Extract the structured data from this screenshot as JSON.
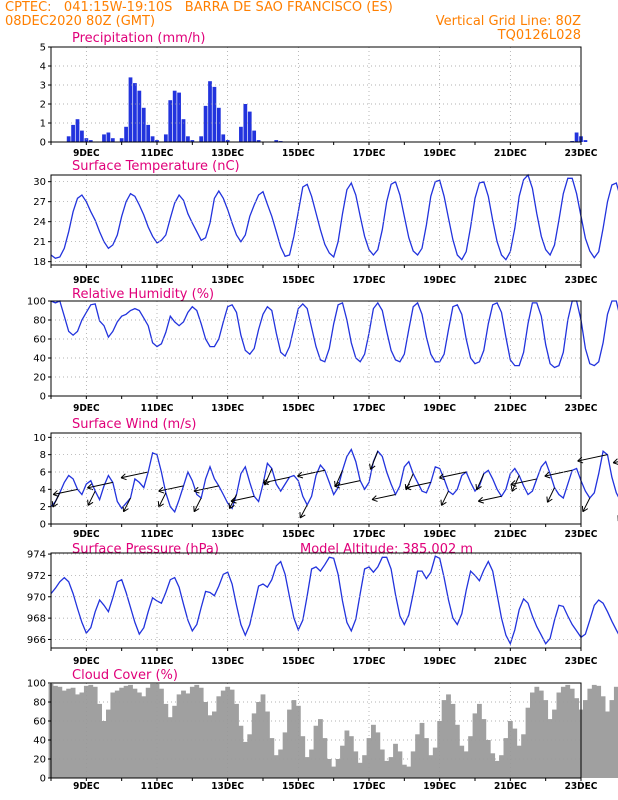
{
  "header": {
    "line1_left": "CPTEC:   041:15W-19:10S   BARRA DE SAO FRANCISCO (ES)",
    "line2_left": "08DEC2020 80Z (GMT)",
    "line2_right": "Vertical Grid Line: 80Z",
    "line3_right": "TQ0126L028"
  },
  "colors": {
    "header": "#ff7f00",
    "title": "#e0007a",
    "line": "#2233dd",
    "cloud": "#a0a0a0",
    "grid": "#999999"
  },
  "x_axis": {
    "start": 8.0,
    "end": 23.0,
    "ticks": [
      9,
      11,
      13,
      15,
      17,
      19,
      21,
      23
    ],
    "tick_labels": [
      "9DEC",
      "11DEC",
      "13DEC",
      "15DEC",
      "17DEC",
      "19DEC",
      "21DEC",
      "23DEC"
    ]
  },
  "chart_data": [
    {
      "type": "bar",
      "title": "Precipitation (mm/h)",
      "ylim": [
        0,
        5
      ],
      "yticks": [
        0,
        1,
        2,
        3,
        4,
        5
      ],
      "x_start": 8.0,
      "x_step": 0.125,
      "values": [
        0,
        0,
        0,
        0,
        0.3,
        0.9,
        1.2,
        0.6,
        0.2,
        0.1,
        0,
        0,
        0.4,
        0.5,
        0.2,
        0,
        0.2,
        0.8,
        3.4,
        3.1,
        2.7,
        1.8,
        0.9,
        0.3,
        0.1,
        0,
        0.4,
        2.2,
        2.7,
        2.6,
        1.2,
        0.3,
        0.1,
        0,
        0.3,
        1.9,
        3.2,
        2.9,
        1.8,
        0.4,
        0.1,
        0,
        0,
        0.8,
        2.0,
        1.6,
        0.6,
        0.1,
        0,
        0,
        0,
        0.1,
        0.05,
        0,
        0,
        0,
        0,
        0,
        0,
        0,
        0,
        0,
        0,
        0,
        0,
        0,
        0,
        0,
        0,
        0,
        0,
        0,
        0,
        0,
        0,
        0,
        0,
        0,
        0,
        0,
        0,
        0,
        0,
        0,
        0,
        0,
        0,
        0,
        0,
        0,
        0,
        0,
        0,
        0,
        0,
        0,
        0,
        0,
        0,
        0,
        0,
        0,
        0,
        0,
        0,
        0,
        0,
        0,
        0,
        0,
        0,
        0,
        0,
        0,
        0,
        0,
        0,
        0,
        0.05,
        0.5,
        0.3,
        0.1,
        0,
        0,
        0,
        0,
        0,
        0
      ]
    },
    {
      "type": "line",
      "title": "Surface Temperature (nC)",
      "ylim": [
        17.5,
        31
      ],
      "yticks": [
        18,
        21,
        24,
        27,
        30
      ],
      "x_start": 8.0,
      "x_step": 0.125,
      "values": [
        19.0,
        18.5,
        18.7,
        20.0,
        22.5,
        25.5,
        27.5,
        28.0,
        27.0,
        25.5,
        24.2,
        22.5,
        21.0,
        20.0,
        20.5,
        22.0,
        24.8,
        27.0,
        28.2,
        27.8,
        26.5,
        25.0,
        23.2,
        21.8,
        20.8,
        21.2,
        22.0,
        24.5,
        26.8,
        28.0,
        27.2,
        25.2,
        23.8,
        22.5,
        21.2,
        21.6,
        23.8,
        27.5,
        28.6,
        27.5,
        25.8,
        23.8,
        22.0,
        21.0,
        22.0,
        24.8,
        26.5,
        28.0,
        28.5,
        26.6,
        24.8,
        22.5,
        20.2,
        18.8,
        19.0,
        21.8,
        25.5,
        29.2,
        29.6,
        27.8,
        25.3,
        22.8,
        20.6,
        19.3,
        18.7,
        21.0,
        25.2,
        28.8,
        29.8,
        28.0,
        24.8,
        21.8,
        19.8,
        19.0,
        19.8,
        22.8,
        27.0,
        29.6,
        30.0,
        28.0,
        24.8,
        21.6,
        19.6,
        19.0,
        20.0,
        23.5,
        27.8,
        30.0,
        30.2,
        27.8,
        24.5,
        21.3,
        19.0,
        18.3,
        19.5,
        23.2,
        27.5,
        29.8,
        30.0,
        27.8,
        24.2,
        21.0,
        19.0,
        18.3,
        19.5,
        23.0,
        27.8,
        30.3,
        31.0,
        29.0,
        25.2,
        21.8,
        19.8,
        19.0,
        20.5,
        24.2,
        28.2,
        30.5,
        30.5,
        28.2,
        24.8,
        21.5,
        19.6,
        18.6,
        19.5,
        23.0,
        27.0,
        29.5,
        29.8,
        27.5,
        24.0,
        21.2,
        19.5,
        19.0,
        20.0,
        23.0,
        27.0,
        29.8,
        30.0,
        26.5
      ]
    },
    {
      "type": "line",
      "title": "Relative Humidity (%)",
      "ylim": [
        0,
        100
      ],
      "yticks": [
        0,
        20,
        40,
        60,
        80,
        100
      ],
      "x_start": 8.0,
      "x_step": 0.125,
      "values": [
        100,
        98,
        100,
        84,
        68,
        64,
        68,
        80,
        88,
        96,
        97,
        79,
        74,
        62,
        68,
        78,
        84,
        86,
        90,
        92,
        90,
        82,
        74,
        56,
        52,
        55,
        67,
        84,
        78,
        74,
        78,
        88,
        94,
        90,
        76,
        60,
        52,
        52,
        60,
        78,
        94,
        96,
        88,
        64,
        48,
        44,
        50,
        70,
        86,
        94,
        90,
        66,
        46,
        42,
        52,
        72,
        92,
        97,
        92,
        72,
        52,
        38,
        36,
        50,
        76,
        96,
        98,
        80,
        56,
        40,
        36,
        44,
        66,
        92,
        98,
        90,
        68,
        48,
        38,
        36,
        44,
        70,
        94,
        98,
        86,
        62,
        44,
        36,
        36,
        44,
        70,
        94,
        96,
        86,
        60,
        40,
        34,
        36,
        48,
        76,
        96,
        98,
        88,
        62,
        38,
        32,
        32,
        46,
        76,
        98,
        98,
        84,
        54,
        34,
        30,
        32,
        46,
        80,
        100,
        100,
        80,
        50,
        34,
        32,
        36,
        56,
        86,
        100,
        100,
        80,
        52,
        36,
        34,
        38,
        60,
        90,
        100,
        96,
        72,
        50,
        36,
        34,
        42,
        62
      ]
    },
    {
      "type": "line",
      "title": "Surface Wind (m/s)",
      "ylim": [
        0,
        10.5
      ],
      "yticks": [
        0,
        2,
        4,
        6,
        8,
        10
      ],
      "x_start": 8.0,
      "x_step": 0.125,
      "values": [
        2.0,
        2.6,
        3.6,
        4.8,
        5.6,
        5.2,
        4.0,
        3.4,
        4.6,
        5.0,
        3.8,
        2.8,
        4.4,
        5.6,
        4.8,
        2.6,
        1.8,
        2.4,
        3.0,
        5.2,
        4.8,
        4.2,
        6.0,
        8.2,
        8.0,
        6.0,
        3.6,
        2.0,
        1.4,
        2.8,
        4.4,
        6.0,
        5.0,
        3.4,
        3.0,
        5.2,
        6.6,
        5.2,
        4.4,
        3.4,
        2.4,
        1.8,
        3.4,
        5.8,
        6.6,
        4.8,
        3.2,
        2.6,
        4.6,
        7.0,
        6.4,
        4.6,
        3.8,
        4.6,
        5.4,
        5.6,
        5.0,
        3.2,
        2.2,
        3.2,
        5.6,
        6.8,
        6.2,
        4.8,
        3.4,
        4.2,
        6.2,
        7.8,
        8.6,
        7.2,
        5.0,
        4.0,
        4.8,
        7.2,
        8.4,
        7.8,
        6.0,
        4.6,
        3.4,
        4.4,
        6.6,
        7.2,
        5.8,
        4.8,
        3.8,
        3.6,
        4.8,
        6.6,
        6.4,
        5.2,
        3.8,
        3.4,
        4.0,
        5.6,
        6.0,
        4.8,
        3.8,
        4.4,
        5.8,
        6.2,
        5.2,
        4.0,
        3.2,
        4.0,
        5.8,
        6.4,
        5.6,
        4.4,
        3.4,
        3.8,
        5.2,
        6.6,
        7.2,
        5.8,
        4.2,
        3.4,
        3.0,
        4.6,
        6.2,
        6.4,
        5.0,
        3.8,
        3.0,
        3.6,
        5.8,
        8.4,
        8.0,
        5.4,
        3.6,
        2.6,
        1.8,
        2.6,
        4.4,
        6.6,
        7.8,
        6.0,
        3.2,
        2.2,
        1.8,
        5.6,
        9.2,
        5.5
      ]
    },
    {
      "type": "line",
      "title": "Surface Pressure (hPa)",
      "annotation": "Model Altitude: 385.002 m",
      "ylim": [
        965.2,
        974.1
      ],
      "yticks": [
        966,
        968,
        970,
        972,
        974
      ],
      "x_start": 8.0,
      "x_step": 0.125,
      "values": [
        970.3,
        970.8,
        971.4,
        971.8,
        971.4,
        970.3,
        968.9,
        967.6,
        966.6,
        967.1,
        968.6,
        969.7,
        969.2,
        968.6,
        969.9,
        971.4,
        971.6,
        970.4,
        969.0,
        967.6,
        966.5,
        967.1,
        968.6,
        969.9,
        969.6,
        969.4,
        970.4,
        971.6,
        971.8,
        970.9,
        969.3,
        967.8,
        966.8,
        967.4,
        969.0,
        970.5,
        970.4,
        970.1,
        971.0,
        972.1,
        972.3,
        971.2,
        969.2,
        967.4,
        966.4,
        967.4,
        969.2,
        971.0,
        971.2,
        970.9,
        971.6,
        972.9,
        973.3,
        972.1,
        970.0,
        968.0,
        966.9,
        967.8,
        970.1,
        972.6,
        972.8,
        972.4,
        973.0,
        973.7,
        973.6,
        972.1,
        969.6,
        967.6,
        966.8,
        967.9,
        970.3,
        972.6,
        972.8,
        972.3,
        972.8,
        973.7,
        973.7,
        972.6,
        970.2,
        968.2,
        967.4,
        968.3,
        970.3,
        972.4,
        972.4,
        971.7,
        972.3,
        973.8,
        973.6,
        971.8,
        969.7,
        968.0,
        967.4,
        968.4,
        970.6,
        972.4,
        972.0,
        971.5,
        972.5,
        973.3,
        972.4,
        970.2,
        968.0,
        966.4,
        965.6,
        966.9,
        968.8,
        969.8,
        969.4,
        968.2,
        967.2,
        966.4,
        965.6,
        966.1,
        967.8,
        969.2,
        969.1,
        968.2,
        967.4,
        966.8,
        966.2,
        966.5,
        967.8,
        969.2,
        969.7,
        969.4,
        968.6,
        967.7,
        966.9,
        966.1,
        965.6,
        966.4,
        968.0,
        969.6,
        969.6,
        968.4,
        967.0,
        966.0,
        965.6,
        966.8,
        969.0,
        969.6,
        968.0,
        966.0
      ]
    },
    {
      "type": "area",
      "title": "Cloud Cover (%)",
      "ylim": [
        0,
        100
      ],
      "yticks": [
        0,
        20,
        40,
        60,
        80,
        100
      ],
      "x_start": 8.0,
      "x_step": 0.125,
      "values": [
        99,
        97,
        96,
        92,
        94,
        95,
        88,
        90,
        97,
        98,
        96,
        78,
        60,
        72,
        90,
        92,
        95,
        97,
        98,
        94,
        90,
        86,
        95,
        99,
        99,
        94,
        78,
        64,
        76,
        88,
        92,
        89,
        96,
        98,
        95,
        80,
        66,
        70,
        86,
        92,
        96,
        93,
        78,
        55,
        38,
        46,
        68,
        80,
        88,
        70,
        42,
        24,
        30,
        48,
        72,
        82,
        76,
        44,
        22,
        30,
        55,
        62,
        42,
        20,
        12,
        20,
        34,
        50,
        44,
        28,
        16,
        24,
        42,
        56,
        48,
        30,
        18,
        22,
        36,
        28,
        14,
        12,
        28,
        46,
        58,
        42,
        24,
        32,
        60,
        82,
        88,
        78,
        56,
        34,
        28,
        44,
        68,
        78,
        62,
        40,
        26,
        18,
        24,
        42,
        60,
        52,
        34,
        46,
        74,
        90,
        96,
        92,
        82,
        62,
        72,
        90,
        96,
        98,
        94,
        84,
        72,
        82,
        94,
        98,
        97,
        86,
        70,
        82,
        96,
        98,
        94,
        88,
        78,
        88,
        94,
        96,
        90,
        82,
        70,
        60,
        78,
        96,
        98,
        90,
        62
      ]
    }
  ]
}
